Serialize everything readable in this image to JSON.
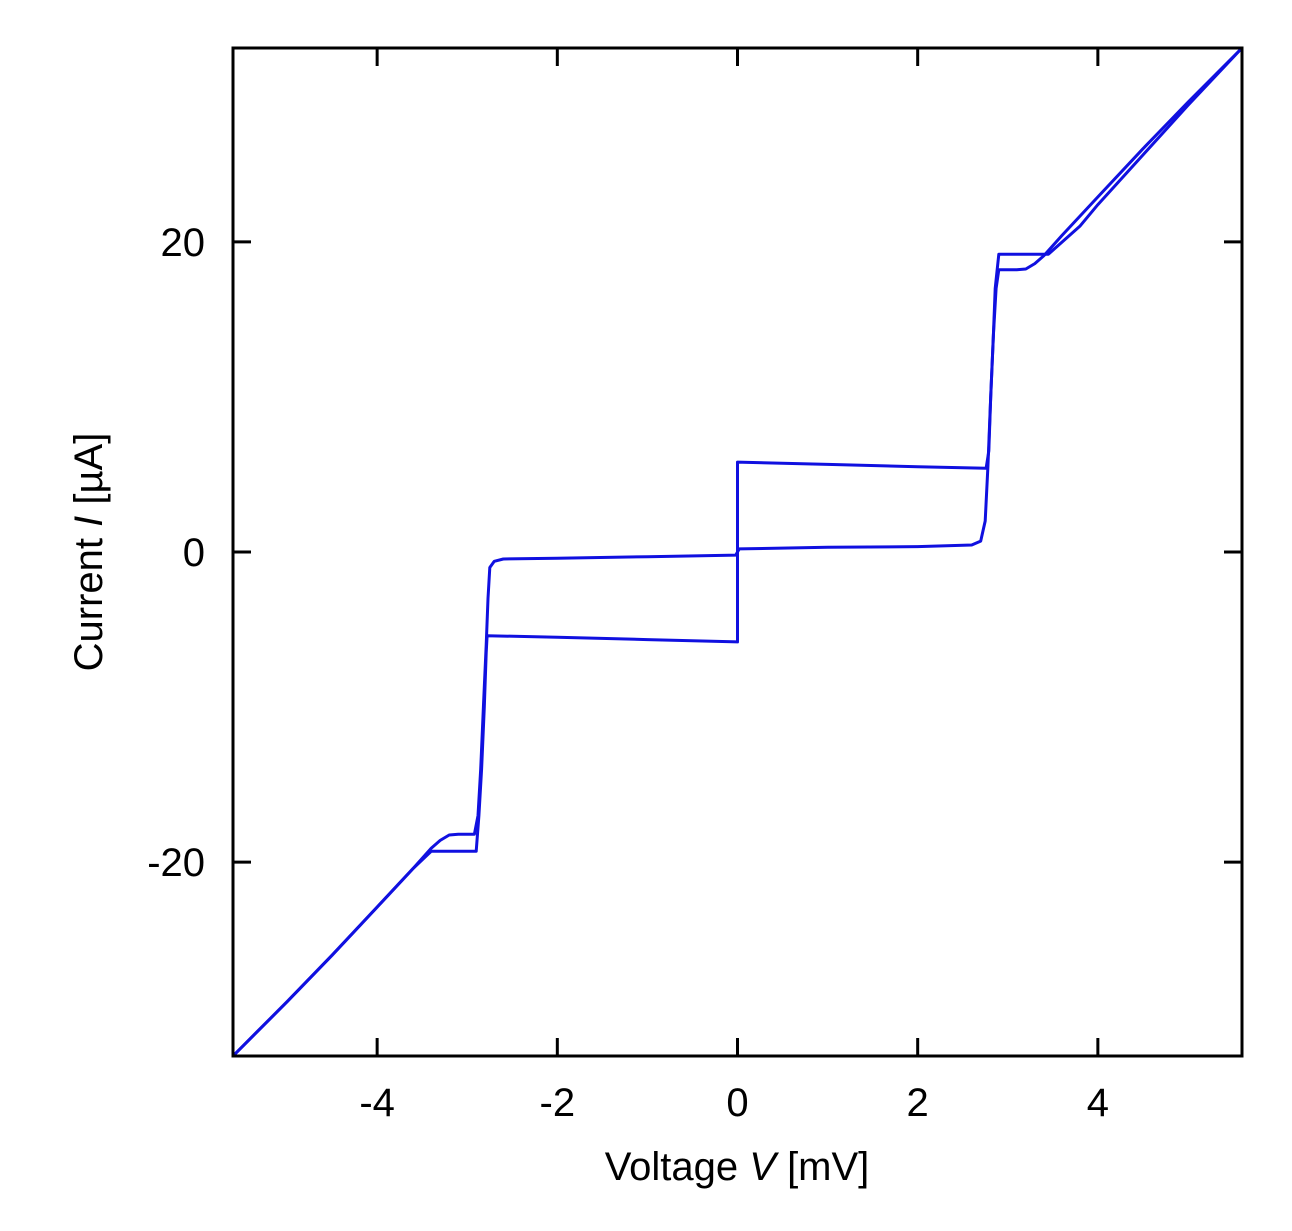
{
  "chart_data": {
    "type": "line",
    "title": "",
    "xlabel_prefix": "Voltage ",
    "xlabel_var": "V",
    "xlabel_suffix": " [mV]",
    "ylabel_prefix": "Current ",
    "ylabel_var": "I",
    "ylabel_suffix": " [µA]",
    "xlim": [
      -5.6,
      5.6
    ],
    "ylim": [
      -32.5,
      32.5
    ],
    "xticks": [
      -4,
      -2,
      0,
      2,
      4
    ],
    "xtick_labels": [
      "-4",
      "-2",
      "0",
      "2",
      "4"
    ],
    "yticks": [
      -20,
      0,
      20
    ],
    "ytick_labels": [
      "-20",
      "0",
      "20"
    ],
    "grid": false,
    "legend": "none",
    "line_color": "#1010e0",
    "series": [
      {
        "values_xy": [
          [
            -5.6,
            -32.5
          ],
          [
            -5.0,
            -29.0
          ],
          [
            -4.5,
            -26.0
          ],
          [
            -4.0,
            -22.9
          ],
          [
            -3.6,
            -20.4
          ],
          [
            -3.4,
            -19.1
          ],
          [
            -3.3,
            -18.6
          ],
          [
            -3.2,
            -18.25
          ],
          [
            -3.1,
            -18.2
          ],
          [
            -2.92,
            -18.2
          ],
          [
            -2.88,
            -17.0
          ],
          [
            -2.85,
            -14.0
          ],
          [
            -2.82,
            -10.0
          ],
          [
            -2.79,
            -6.0
          ],
          [
            -2.77,
            -3.0
          ],
          [
            -2.75,
            -1.0
          ],
          [
            -2.7,
            -0.6
          ],
          [
            -2.6,
            -0.45
          ],
          [
            -2.0,
            -0.4
          ],
          [
            -1.0,
            -0.3
          ],
          [
            -0.02,
            -0.2
          ],
          [
            0.0,
            0.0
          ],
          [
            0.02,
            0.2
          ],
          [
            1.0,
            0.3
          ],
          [
            2.0,
            0.35
          ],
          [
            2.6,
            0.45
          ],
          [
            2.7,
            0.7
          ],
          [
            2.75,
            2.0
          ],
          [
            2.78,
            5.5
          ],
          [
            2.81,
            10.0
          ],
          [
            2.84,
            14.0
          ],
          [
            2.86,
            17.0
          ],
          [
            2.9,
            19.2
          ],
          [
            3.2,
            19.2
          ],
          [
            3.45,
            19.2
          ],
          [
            3.8,
            21.0
          ],
          [
            4.0,
            22.4
          ],
          [
            4.5,
            25.6
          ],
          [
            5.0,
            28.8
          ],
          [
            5.6,
            32.5
          ]
        ]
      },
      {
        "values_xy": [
          [
            -5.6,
            -32.5
          ],
          [
            -5.0,
            -29.0
          ],
          [
            -4.5,
            -26.0
          ],
          [
            -4.0,
            -22.9
          ],
          [
            -3.6,
            -20.4
          ],
          [
            -3.4,
            -19.3
          ],
          [
            -2.9,
            -19.3
          ],
          [
            -2.87,
            -17.0
          ],
          [
            -2.84,
            -14.0
          ],
          [
            -2.81,
            -10.0
          ],
          [
            -2.79,
            -6.5
          ],
          [
            -2.78,
            -5.4
          ],
          [
            -2.0,
            -5.5
          ],
          [
            -1.0,
            -5.65
          ],
          [
            0.0,
            -5.8
          ],
          [
            0.0,
            0.0
          ],
          [
            0.0,
            5.8
          ],
          [
            1.0,
            5.65
          ],
          [
            2.0,
            5.5
          ],
          [
            2.76,
            5.4
          ],
          [
            2.79,
            6.5
          ],
          [
            2.81,
            10.0
          ],
          [
            2.84,
            14.0
          ],
          [
            2.87,
            17.0
          ],
          [
            2.9,
            18.2
          ],
          [
            3.1,
            18.2
          ],
          [
            3.2,
            18.25
          ],
          [
            3.3,
            18.6
          ],
          [
            3.4,
            19.1
          ],
          [
            3.6,
            20.4
          ],
          [
            4.0,
            22.9
          ],
          [
            4.5,
            26.0
          ],
          [
            5.0,
            29.0
          ],
          [
            5.6,
            32.5
          ]
        ]
      }
    ]
  }
}
